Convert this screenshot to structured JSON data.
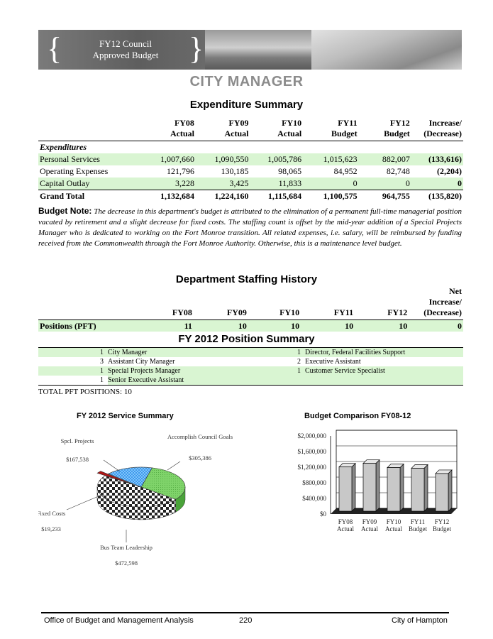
{
  "banner": {
    "title_line1": "FY12 Council",
    "title_line2": "Approved Budget",
    "brace_open": "{",
    "brace_close": "}"
  },
  "page_title": "CITY MANAGER",
  "expenditure": {
    "title": "Expenditure Summary",
    "headers": [
      [
        "FY08",
        "Actual"
      ],
      [
        "FY09",
        "Actual"
      ],
      [
        "FY10",
        "Actual"
      ],
      [
        "FY11",
        "Budget"
      ],
      [
        "FY12",
        "Budget"
      ],
      [
        "Increase/",
        "(Decrease)"
      ]
    ],
    "section_label": "Expenditures",
    "rows": [
      {
        "label": "Personal Services",
        "values": [
          "1,007,660",
          "1,090,550",
          "1,005,786",
          "1,015,623",
          "882,007",
          "(133,616)"
        ]
      },
      {
        "label": "Operating Expenses",
        "values": [
          "121,796",
          "130,185",
          "98,065",
          "84,952",
          "82,748",
          "(2,204)"
        ]
      },
      {
        "label": "Capital Outlay",
        "values": [
          "3,228",
          "3,425",
          "11,833",
          "0",
          "0",
          "0"
        ]
      }
    ],
    "total": {
      "label": "Grand Total",
      "values": [
        "1,132,684",
        "1,224,160",
        "1,115,684",
        "1,100,575",
        "964,755",
        "(135,820)"
      ]
    }
  },
  "budget_note": {
    "label": "Budget Note:",
    "text": "The decrease in this department's budget is attributed to the elimination of a permanent full-time managerial position vacated by retirement and a slight decrease for fixed costs. The staffing count is offset by the mid-year addition of a Special Projects Manager who is dedicated to working on the Fort Monroe transition. All related expenses, i.e. salary, will be reimbursed by funding received from the Commonwealth through the Fort Monroe Authority. Otherwise, this is a maintenance level budget."
  },
  "staffing": {
    "title": "Department Staffing History",
    "headers": [
      "FY08",
      "FY09",
      "FY10",
      "FY11",
      "FY12"
    ],
    "net_header": [
      "Net",
      "Increase/",
      "(Decrease)"
    ],
    "row": {
      "label": "Positions (PFT)",
      "values": [
        "11",
        "10",
        "10",
        "10",
        "10",
        "0"
      ]
    }
  },
  "positions": {
    "title": "FY 2012 Position Summary",
    "rows": [
      {
        "left_count": "1",
        "left": "City Manager",
        "right_count": "1",
        "right": "Director, Federal Facilities Support"
      },
      {
        "left_count": "3",
        "left": "Assistant City Manager",
        "right_count": "2",
        "right": "Executive Assistant"
      },
      {
        "left_count": "1",
        "left": "Special Projects Manager",
        "right_count": "1",
        "right": "Customer Service Specialist"
      },
      {
        "left_count": "1",
        "left": "Senior Executive Assistant",
        "right_count": "",
        "right": ""
      }
    ],
    "total_line": "TOTAL PFT POSITIONS: 10"
  },
  "chart_data": [
    {
      "type": "pie",
      "title": "FY 2012 Service Summary",
      "slices": [
        {
          "label": "Accomplish Council Goals",
          "value": 305386,
          "display": "$305,386",
          "color": "#7fd36a"
        },
        {
          "label": "Bus Team Leadership",
          "value": 472598,
          "display": "$472,598",
          "color": "#222222"
        },
        {
          "label": "Fixed Costs",
          "value": 19233,
          "display": "$19,233",
          "color": "#b01515"
        },
        {
          "label": "Spcl. Projects",
          "value": 167538,
          "display": "$167,538",
          "color": "#2f8ee8"
        }
      ]
    },
    {
      "type": "bar",
      "title": "Budget Comparison  FY08-12",
      "categories": [
        [
          "FY08",
          "Actual"
        ],
        [
          "FY09",
          "Actual"
        ],
        [
          "FY10",
          "Actual"
        ],
        [
          "FY11",
          "Budget"
        ],
        [
          "FY12",
          "Budget"
        ]
      ],
      "values": [
        1132684,
        1224160,
        1115684,
        1100575,
        964755
      ],
      "ylim": [
        0,
        2000000
      ],
      "yticks": [
        "$2,000,000",
        "$1,600,000",
        "$1,200,000",
        "$800,000",
        "$400,000",
        "$0"
      ],
      "grid": true,
      "bar_color": "#c8c8c8"
    }
  ],
  "footer": {
    "left": "Office of Budget and Management Analysis",
    "page": "220",
    "right": "City of Hampton"
  }
}
